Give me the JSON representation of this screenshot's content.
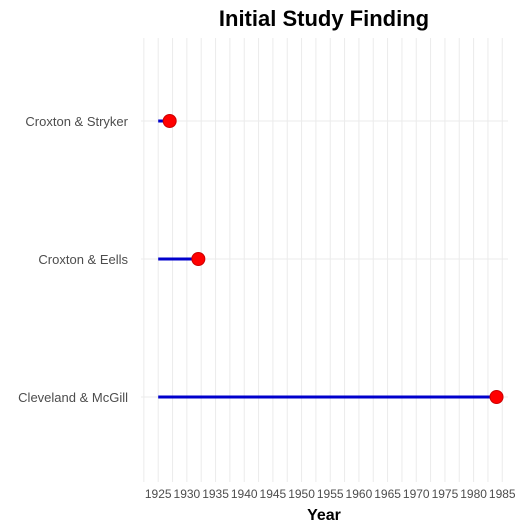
{
  "chart_data": {
    "type": "dot",
    "title": "Initial Study Finding",
    "xlabel": "Year",
    "ylabel": "",
    "xlim": [
      1922,
      1986
    ],
    "x_ticks": [
      1925,
      1930,
      1935,
      1940,
      1945,
      1950,
      1955,
      1960,
      1965,
      1970,
      1975,
      1980,
      1985
    ],
    "baseline": 1925,
    "categories": [
      "Croxton & Stryker",
      "Croxton & Eells",
      "Cleveland & McGill"
    ],
    "values": [
      1927,
      1932,
      1984
    ],
    "grid": true,
    "legend": "none",
    "colors": {
      "segment": "#0000cc",
      "point": "#ff0000",
      "point_edge": "#cc0000"
    }
  }
}
